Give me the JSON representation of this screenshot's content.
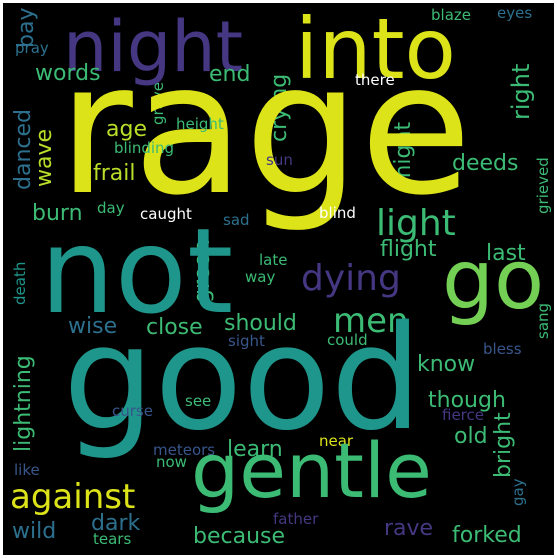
{
  "palette": {
    "background": "#000000",
    "border": "#ffffff",
    "c1": "#dce319",
    "c2": "#b8de29",
    "c3": "#73d055",
    "c4": "#3cbb75",
    "c5": "#20a386",
    "c6": "#1f968b",
    "c7": "#238a8d",
    "c8": "#2d708e",
    "c9": "#39568c",
    "c10": "#453781",
    "c11": "#481f70",
    "c12": "#440154"
  },
  "words": [
    "rage",
    "not",
    "good",
    "go",
    "into",
    "night",
    "gentle",
    "light",
    "dying",
    "men",
    "against",
    "should",
    "close",
    "wise",
    "frail",
    "age",
    "end",
    "words",
    "bay",
    "pray",
    "blaze",
    "eyes",
    "there",
    "right",
    "grave",
    "crying",
    "deeds",
    "danced",
    "wave",
    "burn",
    "day",
    "caught",
    "height",
    "blinding",
    "sun",
    "might",
    "grieved",
    "sad",
    "blind",
    "last",
    "flight",
    "late",
    "way",
    "green",
    "death",
    "lightning",
    "sang",
    "could",
    "sight",
    "know",
    "bless",
    "though",
    "bright",
    "see",
    "curse",
    "fierce",
    "old",
    "learn",
    "near",
    "meteors",
    "now",
    "like",
    "gay",
    "wild",
    "dark",
    "because",
    "rave",
    "forked",
    "father",
    "tears"
  ]
}
